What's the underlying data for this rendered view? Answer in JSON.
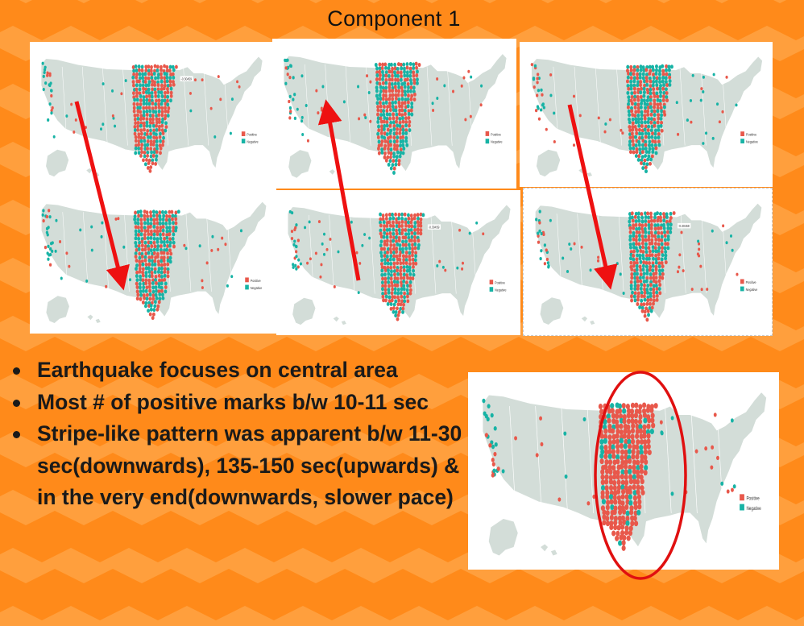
{
  "title": "Component 1",
  "legend": {
    "positive": "Positive",
    "negative": "Negative"
  },
  "map_value_label": "-0.30459",
  "colors": {
    "background": "#ff8a1a",
    "chevron_light": "#ffa64a",
    "land": "#d3ddd8",
    "positive": "#e8584b",
    "negative": "#17b3a5",
    "arrow": "#ee1111",
    "highlight_ellipse": "#e01010"
  },
  "bullets": [
    {
      "text": "Earthquake focuses on central area"
    },
    {
      "text": "Most # of positive marks b/w 10-11 sec"
    },
    {
      "text": "Stripe-like pattern was apparent b/w 11-30 sec(downwards), 135-150 sec(upwards) & in the very end(downwards, slower pace)"
    }
  ],
  "arrows": [
    {
      "panel_column": 1,
      "direction": "downwards"
    },
    {
      "panel_column": 2,
      "direction": "upwards"
    },
    {
      "panel_column": 3,
      "direction": "downwards"
    }
  ]
}
